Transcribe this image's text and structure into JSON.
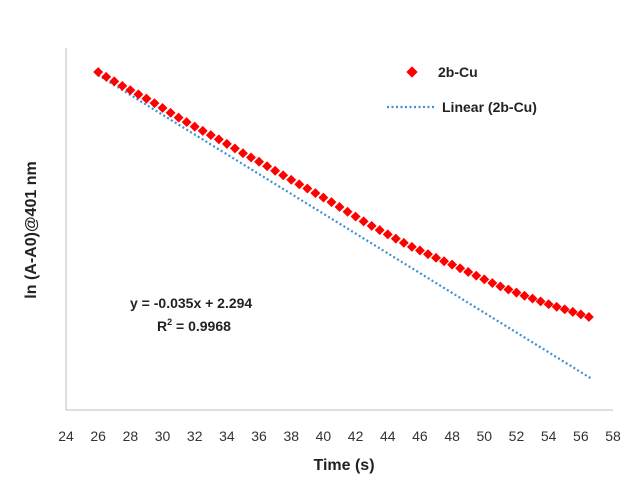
{
  "chart_data": {
    "type": "scatter",
    "title": "",
    "xlabel": "Time (s)",
    "ylabel": "ln (A-A0)@401 nm",
    "xlim": [
      24,
      58
    ],
    "xticks": [
      24,
      26,
      28,
      30,
      32,
      34,
      36,
      38,
      40,
      42,
      44,
      46,
      48,
      50,
      52,
      54,
      56,
      58
    ],
    "ylim": [
      0.2,
      1.48
    ],
    "grid": false,
    "legend_position": "top-right",
    "series": [
      {
        "name": "2b-Cu",
        "type": "scatter",
        "marker": "diamond",
        "color": "#ff0000",
        "x": [
          26.0,
          26.5,
          27.0,
          27.5,
          28.0,
          28.5,
          29.0,
          29.5,
          30.0,
          30.5,
          31.0,
          31.5,
          32.0,
          32.5,
          33.0,
          33.5,
          34.0,
          34.5,
          35.0,
          35.5,
          36.0,
          36.5,
          37.0,
          37.5,
          38.0,
          38.5,
          39.0,
          39.5,
          40.0,
          40.5,
          41.0,
          41.5,
          42.0,
          42.5,
          43.0,
          43.5,
          44.0,
          44.5,
          45.0,
          45.5,
          46.0,
          46.5,
          47.0,
          47.5,
          48.0,
          48.5,
          49.0,
          49.5,
          50.0,
          50.5,
          51.0,
          51.5,
          52.0,
          52.5,
          53.0,
          53.5,
          54.0,
          54.5,
          55.0,
          55.5,
          56.0,
          56.5
        ],
        "y": [
          1.395,
          1.378,
          1.362,
          1.346,
          1.331,
          1.316,
          1.301,
          1.285,
          1.268,
          1.251,
          1.234,
          1.218,
          1.202,
          1.187,
          1.172,
          1.157,
          1.141,
          1.125,
          1.108,
          1.093,
          1.078,
          1.062,
          1.046,
          1.03,
          1.014,
          0.998,
          0.983,
          0.967,
          0.951,
          0.935,
          0.918,
          0.901,
          0.884,
          0.867,
          0.851,
          0.836,
          0.821,
          0.806,
          0.791,
          0.777,
          0.764,
          0.751,
          0.738,
          0.726,
          0.714,
          0.701,
          0.688,
          0.675,
          0.662,
          0.649,
          0.637,
          0.626,
          0.615,
          0.604,
          0.594,
          0.584,
          0.574,
          0.565,
          0.556,
          0.547,
          0.538,
          0.529
        ]
      },
      {
        "name": "Linear (2b-Cu)",
        "type": "line",
        "style": "dotted",
        "color": "#3b8fd6",
        "slope": -0.035,
        "intercept": 2.294,
        "x": [
          26.0,
          56.7
        ],
        "y": [
          1.384,
          0.3095
        ]
      }
    ],
    "annotations": {
      "equation": "y = -0.035x + 2.294",
      "r2_prefix": "R",
      "r2_sup": "2",
      "r2_suffix": " = 0.9968"
    }
  }
}
